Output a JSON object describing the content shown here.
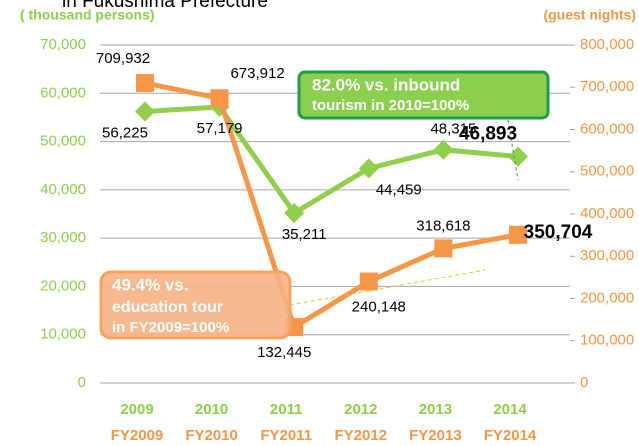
{
  "chart_data": {
    "type": "line",
    "title": "in Fukushima Prefecture",
    "y_label": "( thousand persons)",
    "y2_label": "(guest nights)",
    "categories": [
      "2009",
      "2010",
      "2011",
      "2012",
      "2013",
      "2014"
    ],
    "categories2": [
      "FY2009",
      "FY2010",
      "FY2011",
      "FY2012",
      "FY2013",
      "FY2014"
    ],
    "series": [
      {
        "name": "inbound tourism",
        "color": "#8fcf4a",
        "axis": "y",
        "values": [
          56225,
          57179,
          35211,
          44459,
          48315,
          46893
        ],
        "value_labels": [
          "56,225",
          "57,179",
          "35,211",
          "44,459",
          "48,315",
          "46,893"
        ]
      },
      {
        "name": "education tour",
        "color": "#f79646",
        "axis": "y2",
        "values": [
          709932,
          673912,
          132445,
          240148,
          318618,
          350704
        ],
        "value_labels": [
          "709,932",
          "673,912",
          "132,445",
          "240,148",
          "318,618",
          "350,704"
        ]
      }
    ],
    "ylim": [
      0,
      70000
    ],
    "yticks": [
      0,
      {
        "value": 10000,
        "label": "10,000"
      },
      {
        "value": 20000,
        "label": "20,000"
      },
      {
        "value": 30000,
        "label": "30,000"
      },
      {
        "value": 40000,
        "label": "40,000"
      },
      {
        "value": 50000,
        "label": "50,000"
      },
      {
        "value": 60000,
        "label": "60,000"
      },
      {
        "value": 70000,
        "label": "70,000"
      }
    ],
    "y2lim": [
      0,
      800000
    ],
    "y2ticks": [
      0,
      {
        "value": 100000,
        "label": "100,000"
      },
      {
        "value": 200000,
        "label": "200,000"
      },
      {
        "value": 300000,
        "label": "300,000"
      },
      {
        "value": 400000,
        "label": "400,000"
      },
      {
        "value": 500000,
        "label": "500,000"
      },
      {
        "value": 600000,
        "label": "600,000"
      },
      {
        "value": 700000,
        "label": "700,000"
      },
      {
        "value": 800000,
        "label": "800,000"
      }
    ],
    "grid": true,
    "annotations": [
      "82.0% vs.   inbound",
      "tourism in  2010=100%",
      "49.4% vs.",
      "education tour",
      "in FY2009=100%"
    ]
  }
}
